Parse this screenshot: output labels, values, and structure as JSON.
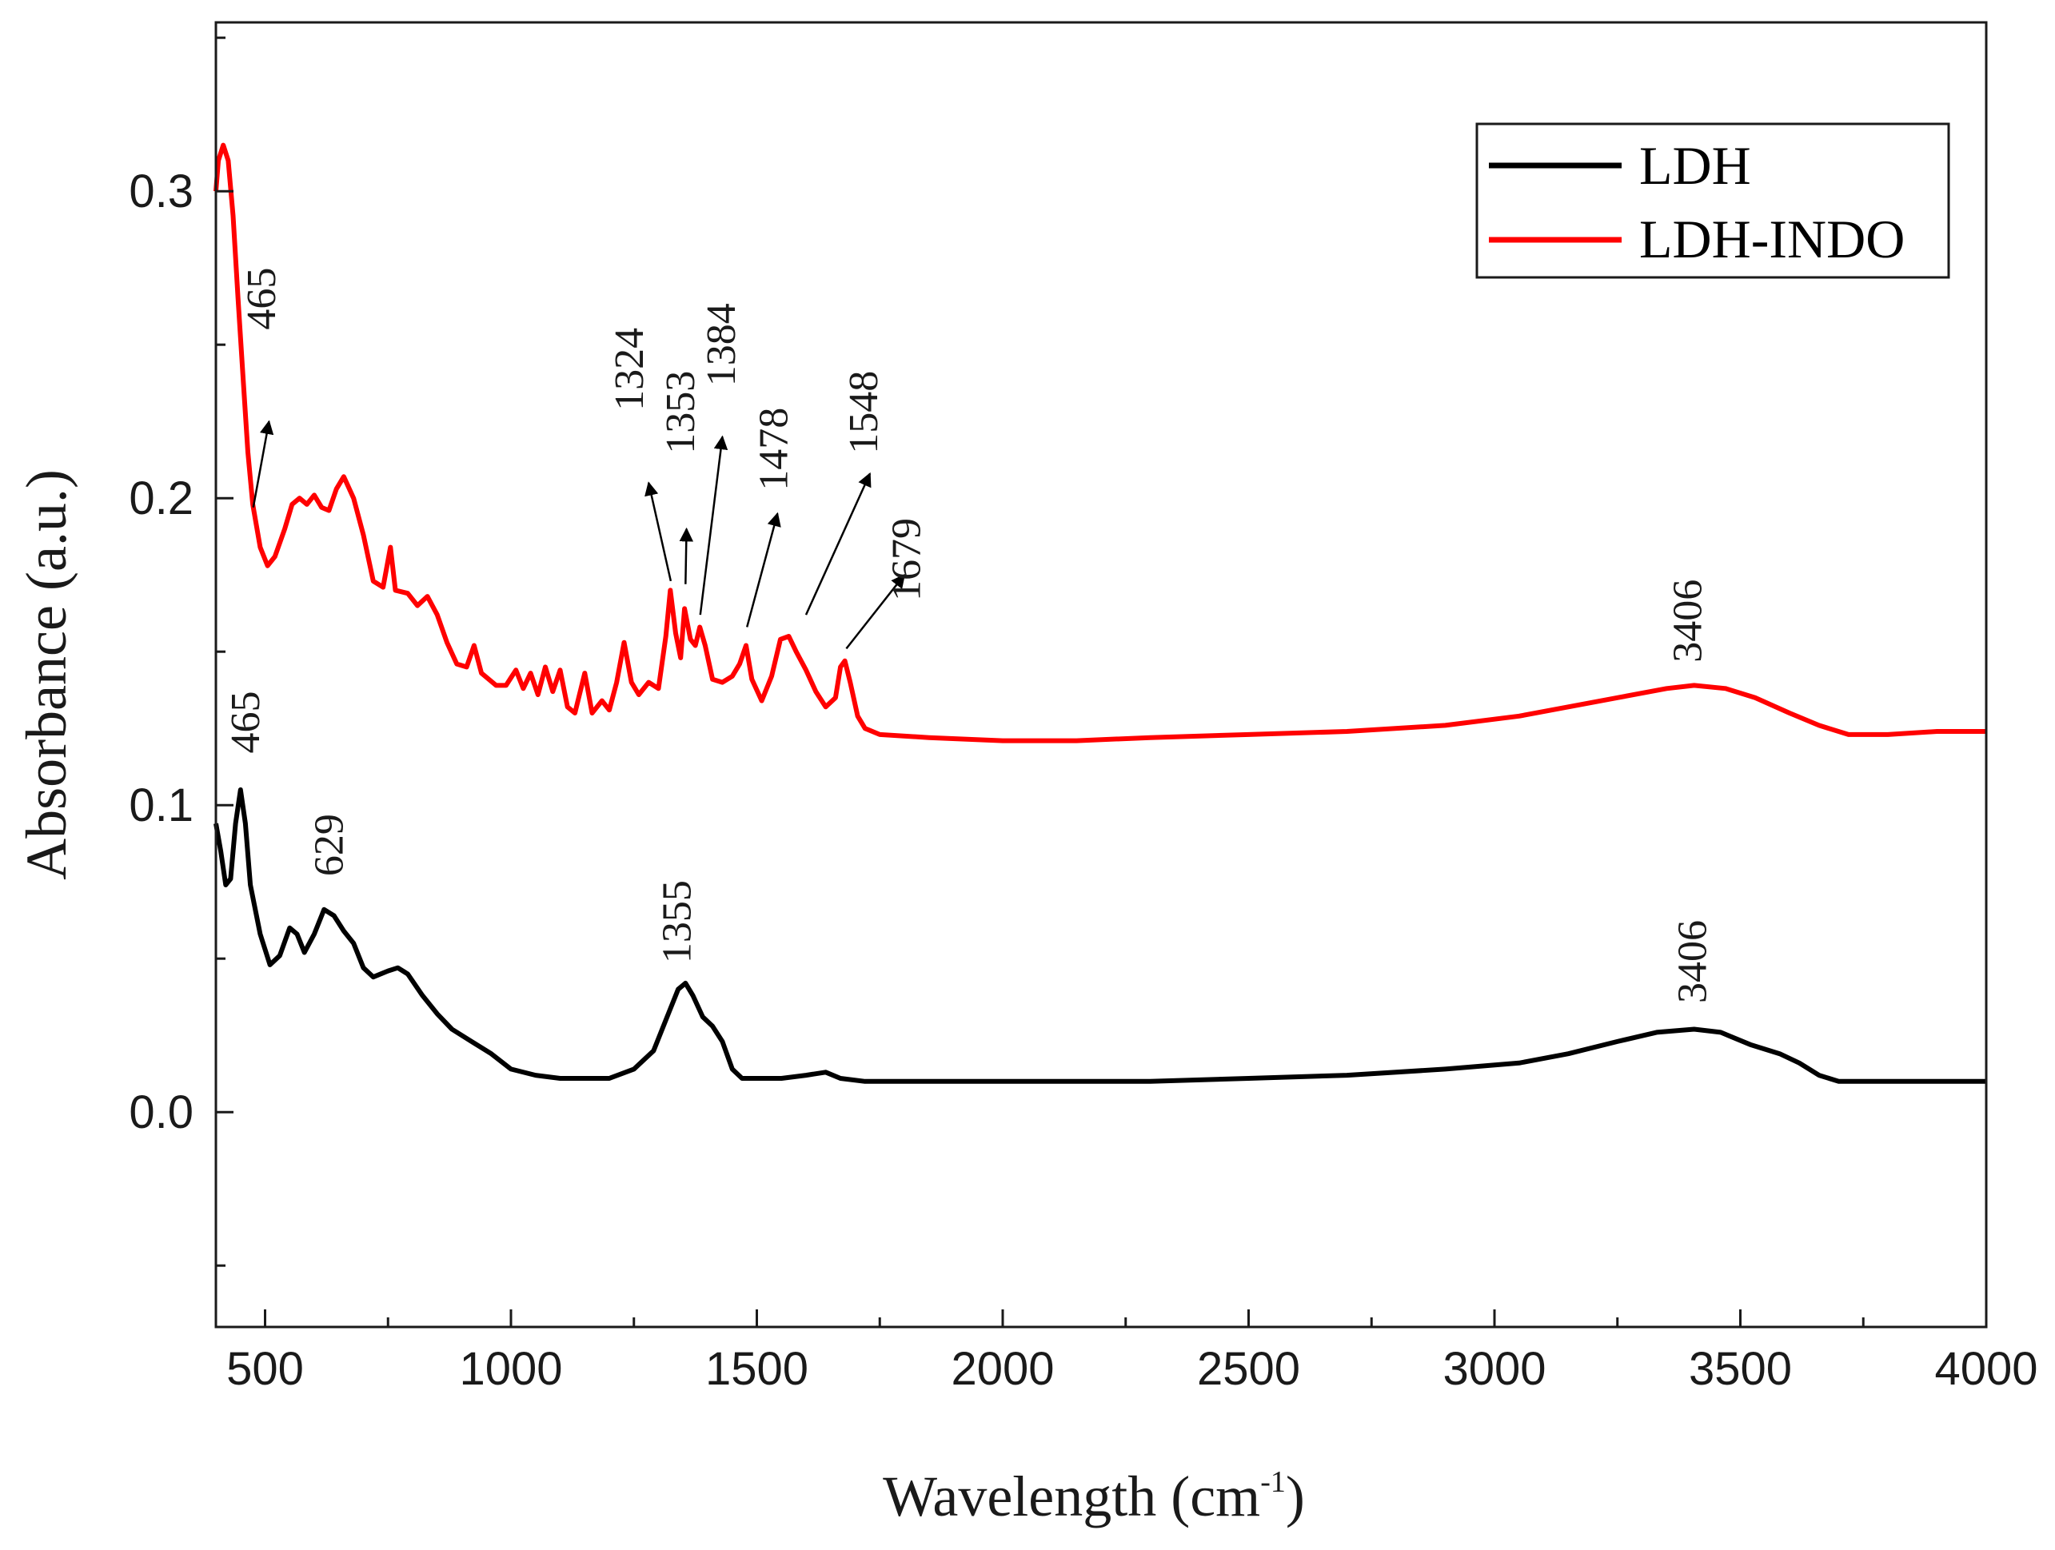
{
  "chart_data": {
    "type": "line",
    "title": "",
    "xlabel": "Wavelength (cm",
    "xlabel_sup": "-1",
    "xlabel_close": ")",
    "ylabel": "Absorbance (a.u.)",
    "xlim": [
      400,
      4000
    ],
    "ylim": [
      -0.07,
      0.355
    ],
    "x_ticks": [
      500,
      1000,
      1500,
      2000,
      2500,
      3000,
      3500,
      4000
    ],
    "x_tick_labels": [
      "500",
      "1000",
      "1500",
      "2000",
      "2500",
      "3000",
      "3500",
      "4000"
    ],
    "y_ticks": [
      0.0,
      0.1,
      0.2,
      0.3
    ],
    "y_tick_labels": [
      "0.0",
      "0.1",
      "0.2",
      "0.3"
    ],
    "grid": false,
    "legend": {
      "position": "top-right",
      "entries": [
        "LDH",
        "LDH-INDO"
      ]
    },
    "series": [
      {
        "name": "LDH",
        "color": "#000000",
        "points": [
          [
            400,
            0.094
          ],
          [
            410,
            0.085
          ],
          [
            420,
            0.074
          ],
          [
            430,
            0.076
          ],
          [
            440,
            0.094
          ],
          [
            450,
            0.105
          ],
          [
            460,
            0.094
          ],
          [
            470,
            0.074
          ],
          [
            490,
            0.058
          ],
          [
            510,
            0.048
          ],
          [
            530,
            0.051
          ],
          [
            550,
            0.06
          ],
          [
            565,
            0.058
          ],
          [
            580,
            0.052
          ],
          [
            600,
            0.058
          ],
          [
            620,
            0.066
          ],
          [
            640,
            0.064
          ],
          [
            660,
            0.059
          ],
          [
            680,
            0.055
          ],
          [
            700,
            0.047
          ],
          [
            720,
            0.044
          ],
          [
            750,
            0.046
          ],
          [
            770,
            0.047
          ],
          [
            790,
            0.045
          ],
          [
            820,
            0.038
          ],
          [
            850,
            0.032
          ],
          [
            880,
            0.027
          ],
          [
            920,
            0.023
          ],
          [
            960,
            0.019
          ],
          [
            1000,
            0.014
          ],
          [
            1050,
            0.012
          ],
          [
            1100,
            0.011
          ],
          [
            1150,
            0.011
          ],
          [
            1200,
            0.011
          ],
          [
            1250,
            0.014
          ],
          [
            1290,
            0.02
          ],
          [
            1320,
            0.032
          ],
          [
            1340,
            0.04
          ],
          [
            1355,
            0.042
          ],
          [
            1370,
            0.038
          ],
          [
            1390,
            0.031
          ],
          [
            1410,
            0.028
          ],
          [
            1430,
            0.023
          ],
          [
            1450,
            0.014
          ],
          [
            1470,
            0.011
          ],
          [
            1550,
            0.011
          ],
          [
            1600,
            0.012
          ],
          [
            1640,
            0.013
          ],
          [
            1670,
            0.011
          ],
          [
            1720,
            0.01
          ],
          [
            1800,
            0.01
          ],
          [
            1900,
            0.01
          ],
          [
            2000,
            0.01
          ],
          [
            2150,
            0.01
          ],
          [
            2300,
            0.01
          ],
          [
            2500,
            0.011
          ],
          [
            2700,
            0.012
          ],
          [
            2900,
            0.014
          ],
          [
            3050,
            0.016
          ],
          [
            3150,
            0.019
          ],
          [
            3250,
            0.023
          ],
          [
            3330,
            0.026
          ],
          [
            3406,
            0.027
          ],
          [
            3460,
            0.026
          ],
          [
            3520,
            0.022
          ],
          [
            3580,
            0.019
          ],
          [
            3620,
            0.016
          ],
          [
            3660,
            0.012
          ],
          [
            3700,
            0.01
          ],
          [
            3800,
            0.01
          ],
          [
            3900,
            0.01
          ],
          [
            4000,
            0.01
          ]
        ]
      },
      {
        "name": "LDH-INDO",
        "color": "#ff0000",
        "points": [
          [
            400,
            0.3
          ],
          [
            405,
            0.31
          ],
          [
            415,
            0.315
          ],
          [
            425,
            0.31
          ],
          [
            435,
            0.292
          ],
          [
            445,
            0.265
          ],
          [
            455,
            0.24
          ],
          [
            465,
            0.215
          ],
          [
            475,
            0.198
          ],
          [
            490,
            0.184
          ],
          [
            505,
            0.178
          ],
          [
            520,
            0.181
          ],
          [
            540,
            0.19
          ],
          [
            555,
            0.198
          ],
          [
            570,
            0.2
          ],
          [
            585,
            0.198
          ],
          [
            600,
            0.201
          ],
          [
            615,
            0.197
          ],
          [
            630,
            0.196
          ],
          [
            645,
            0.203
          ],
          [
            660,
            0.207
          ],
          [
            680,
            0.2
          ],
          [
            700,
            0.188
          ],
          [
            720,
            0.173
          ],
          [
            740,
            0.171
          ],
          [
            755,
            0.184
          ],
          [
            765,
            0.17
          ],
          [
            790,
            0.169
          ],
          [
            810,
            0.165
          ],
          [
            830,
            0.168
          ],
          [
            850,
            0.162
          ],
          [
            870,
            0.153
          ],
          [
            890,
            0.146
          ],
          [
            910,
            0.145
          ],
          [
            925,
            0.152
          ],
          [
            940,
            0.143
          ],
          [
            970,
            0.139
          ],
          [
            990,
            0.139
          ],
          [
            1010,
            0.144
          ],
          [
            1025,
            0.138
          ],
          [
            1040,
            0.143
          ],
          [
            1055,
            0.136
          ],
          [
            1070,
            0.145
          ],
          [
            1085,
            0.137
          ],
          [
            1100,
            0.144
          ],
          [
            1115,
            0.132
          ],
          [
            1130,
            0.13
          ],
          [
            1150,
            0.143
          ],
          [
            1165,
            0.13
          ],
          [
            1185,
            0.134
          ],
          [
            1200,
            0.131
          ],
          [
            1215,
            0.14
          ],
          [
            1230,
            0.153
          ],
          [
            1245,
            0.14
          ],
          [
            1260,
            0.136
          ],
          [
            1280,
            0.14
          ],
          [
            1300,
            0.138
          ],
          [
            1315,
            0.155
          ],
          [
            1324,
            0.17
          ],
          [
            1335,
            0.156
          ],
          [
            1345,
            0.148
          ],
          [
            1353,
            0.164
          ],
          [
            1365,
            0.154
          ],
          [
            1375,
            0.152
          ],
          [
            1384,
            0.158
          ],
          [
            1395,
            0.152
          ],
          [
            1410,
            0.141
          ],
          [
            1430,
            0.14
          ],
          [
            1450,
            0.142
          ],
          [
            1465,
            0.146
          ],
          [
            1478,
            0.152
          ],
          [
            1490,
            0.141
          ],
          [
            1510,
            0.134
          ],
          [
            1530,
            0.142
          ],
          [
            1548,
            0.154
          ],
          [
            1565,
            0.155
          ],
          [
            1580,
            0.15
          ],
          [
            1600,
            0.144
          ],
          [
            1620,
            0.137
          ],
          [
            1640,
            0.132
          ],
          [
            1660,
            0.135
          ],
          [
            1670,
            0.145
          ],
          [
            1679,
            0.147
          ],
          [
            1690,
            0.14
          ],
          [
            1705,
            0.129
          ],
          [
            1720,
            0.125
          ],
          [
            1750,
            0.123
          ],
          [
            1850,
            0.122
          ],
          [
            2000,
            0.121
          ],
          [
            2150,
            0.121
          ],
          [
            2300,
            0.122
          ],
          [
            2500,
            0.123
          ],
          [
            2700,
            0.124
          ],
          [
            2900,
            0.126
          ],
          [
            3050,
            0.129
          ],
          [
            3150,
            0.132
          ],
          [
            3250,
            0.135
          ],
          [
            3350,
            0.138
          ],
          [
            3406,
            0.139
          ],
          [
            3470,
            0.138
          ],
          [
            3530,
            0.135
          ],
          [
            3600,
            0.13
          ],
          [
            3660,
            0.126
          ],
          [
            3720,
            0.123
          ],
          [
            3800,
            0.123
          ],
          [
            3900,
            0.124
          ],
          [
            4000,
            0.124
          ]
        ]
      }
    ],
    "annotations": [
      {
        "series": "LDH-INDO",
        "label": "465",
        "arrow": true,
        "from": [
          476,
          0.197
        ],
        "to": [
          508,
          0.225
        ],
        "text_at": [
          520,
          0.265
        ]
      },
      {
        "series": "LDH-INDO",
        "label": "1324",
        "arrow": true,
        "from": [
          1325,
          0.173
        ],
        "to": [
          1280,
          0.205
        ],
        "text_at": [
          1268,
          0.242
        ]
      },
      {
        "series": "LDH-INDO",
        "label": "1353",
        "arrow": true,
        "from": [
          1355,
          0.172
        ],
        "to": [
          1357,
          0.19
        ],
        "text_at": [
          1372,
          0.228
        ]
      },
      {
        "series": "LDH-INDO",
        "label": "1384",
        "arrow": true,
        "from": [
          1385,
          0.162
        ],
        "to": [
          1430,
          0.22
        ],
        "text_at": [
          1455,
          0.25
        ]
      },
      {
        "series": "LDH-INDO",
        "label": "1478",
        "arrow": true,
        "from": [
          1480,
          0.158
        ],
        "to": [
          1542,
          0.195
        ],
        "text_at": [
          1562,
          0.216
        ]
      },
      {
        "series": "LDH-INDO",
        "label": "1548",
        "arrow": true,
        "from": [
          1600,
          0.162
        ],
        "to": [
          1730,
          0.208
        ],
        "text_at": [
          1745,
          0.228
        ]
      },
      {
        "series": "LDH-INDO",
        "label": "1679",
        "arrow": true,
        "from": [
          1682,
          0.151
        ],
        "to": [
          1800,
          0.175
        ],
        "text_at": [
          1832,
          0.18
        ]
      },
      {
        "series": "LDH-INDO",
        "label": "3406",
        "arrow": false,
        "text_at": [
          3420,
          0.16
        ]
      },
      {
        "series": "LDH",
        "label": "465",
        "arrow": false,
        "text_at": [
          488,
          0.127
        ]
      },
      {
        "series": "LDH",
        "label": "629",
        "arrow": false,
        "text_at": [
          658,
          0.087
        ]
      },
      {
        "series": "LDH",
        "label": "1355",
        "arrow": false,
        "text_at": [
          1365,
          0.062
        ]
      },
      {
        "series": "LDH",
        "label": "3406",
        "arrow": false,
        "text_at": [
          3430,
          0.049
        ]
      }
    ]
  }
}
